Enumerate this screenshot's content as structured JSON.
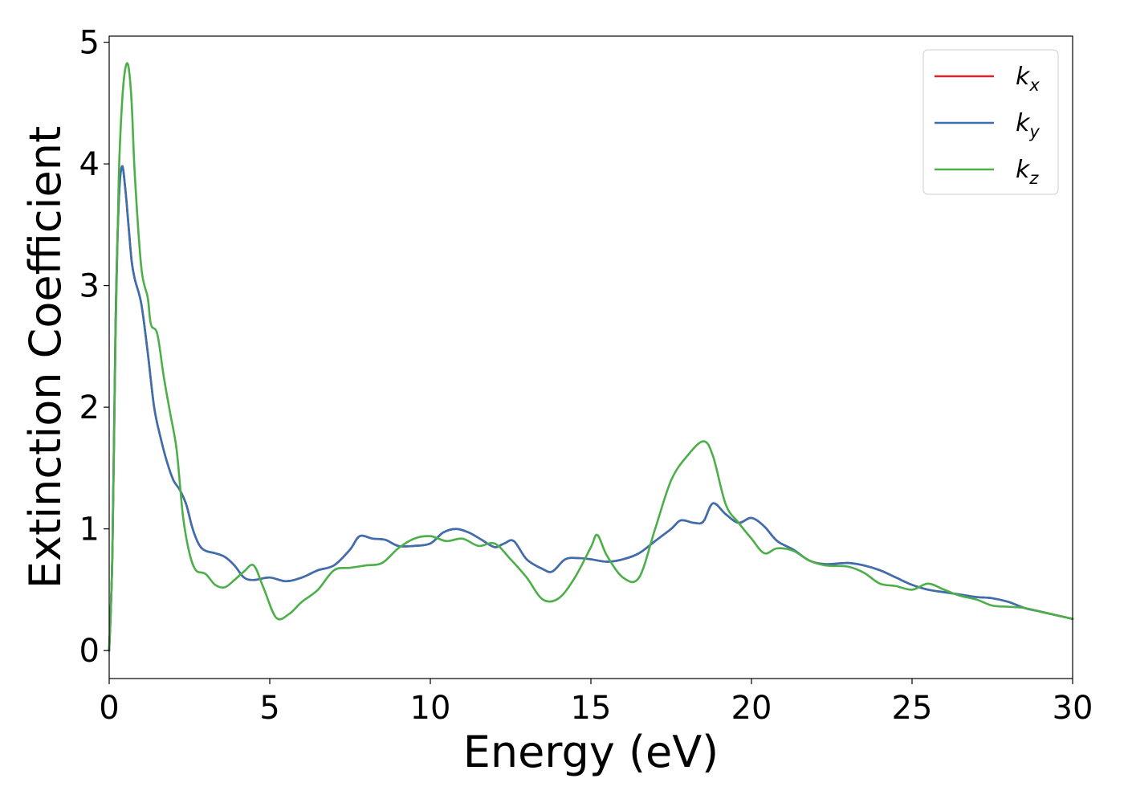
{
  "chart_data": {
    "type": "line",
    "xlabel": "Energy (eV)",
    "ylabel": "Extinction Coefficient",
    "xlim": [
      0,
      30
    ],
    "ylim": [
      -0.23,
      5.05
    ],
    "xticks": [
      "0",
      "5",
      "10",
      "15",
      "20",
      "25",
      "30"
    ],
    "yticks": [
      "0",
      "1",
      "2",
      "3",
      "4",
      "5"
    ],
    "grid": false,
    "legend_position": "top-right",
    "series": [
      {
        "name": "k_x",
        "label_base": "k",
        "label_sub": "x",
        "color": "#d62728",
        "x": [
          0,
          0.1,
          0.2,
          0.3,
          0.4,
          0.5,
          0.6,
          0.7,
          0.8,
          1.0,
          1.2,
          1.4,
          1.6,
          1.8,
          2.0,
          2.2,
          2.4,
          2.6,
          2.8,
          3.0,
          3.3,
          3.6,
          3.9,
          4.2,
          4.5,
          5.0,
          5.5,
          6.0,
          6.5,
          7.0,
          7.5,
          7.8,
          8.2,
          8.6,
          9.0,
          9.5,
          10.0,
          10.4,
          10.8,
          11.2,
          11.6,
          12.0,
          12.3,
          12.6,
          13.0,
          13.5,
          13.8,
          14.2,
          14.6,
          15.0,
          15.5,
          16.0,
          16.5,
          17.0,
          17.5,
          17.8,
          18.2,
          18.5,
          18.8,
          19.2,
          19.6,
          20.0,
          20.4,
          20.8,
          21.3,
          21.8,
          22.3,
          23.0,
          23.5,
          24.0,
          24.5,
          25.0,
          25.5,
          26.0,
          26.5,
          27.0,
          27.5,
          28.0,
          28.5,
          29.0,
          29.5,
          30.0
        ],
        "values": [
          0.0,
          0.8,
          2.7,
          3.7,
          3.98,
          3.8,
          3.5,
          3.2,
          3.05,
          2.85,
          2.45,
          2.0,
          1.75,
          1.55,
          1.4,
          1.32,
          1.2,
          1.0,
          0.87,
          0.82,
          0.8,
          0.77,
          0.7,
          0.6,
          0.58,
          0.6,
          0.57,
          0.6,
          0.66,
          0.7,
          0.83,
          0.94,
          0.92,
          0.91,
          0.86,
          0.86,
          0.88,
          0.97,
          1.0,
          0.97,
          0.91,
          0.85,
          0.88,
          0.9,
          0.75,
          0.67,
          0.65,
          0.75,
          0.76,
          0.75,
          0.73,
          0.75,
          0.8,
          0.9,
          1.0,
          1.07,
          1.05,
          1.06,
          1.21,
          1.12,
          1.05,
          1.09,
          1.02,
          0.9,
          0.83,
          0.74,
          0.71,
          0.72,
          0.7,
          0.66,
          0.6,
          0.54,
          0.5,
          0.48,
          0.46,
          0.44,
          0.43,
          0.4,
          0.35,
          0.32,
          0.29,
          0.26
        ]
      },
      {
        "name": "k_y",
        "label_base": "k",
        "label_sub": "y",
        "color": "#3a6fb0",
        "x": [
          0,
          0.1,
          0.2,
          0.3,
          0.4,
          0.5,
          0.6,
          0.7,
          0.8,
          1.0,
          1.2,
          1.4,
          1.6,
          1.8,
          2.0,
          2.2,
          2.4,
          2.6,
          2.8,
          3.0,
          3.3,
          3.6,
          3.9,
          4.2,
          4.5,
          5.0,
          5.5,
          6.0,
          6.5,
          7.0,
          7.5,
          7.8,
          8.2,
          8.6,
          9.0,
          9.5,
          10.0,
          10.4,
          10.8,
          11.2,
          11.6,
          12.0,
          12.3,
          12.6,
          13.0,
          13.5,
          13.8,
          14.2,
          14.6,
          15.0,
          15.5,
          16.0,
          16.5,
          17.0,
          17.5,
          17.8,
          18.2,
          18.5,
          18.8,
          19.2,
          19.6,
          20.0,
          20.4,
          20.8,
          21.3,
          21.8,
          22.3,
          23.0,
          23.5,
          24.0,
          24.5,
          25.0,
          25.5,
          26.0,
          26.5,
          27.0,
          27.5,
          28.0,
          28.5,
          29.0,
          29.5,
          30.0
        ],
        "values": [
          0.0,
          0.8,
          2.7,
          3.7,
          3.98,
          3.8,
          3.5,
          3.2,
          3.05,
          2.85,
          2.45,
          2.0,
          1.75,
          1.55,
          1.4,
          1.32,
          1.2,
          1.0,
          0.87,
          0.82,
          0.8,
          0.77,
          0.7,
          0.6,
          0.58,
          0.6,
          0.57,
          0.6,
          0.66,
          0.7,
          0.83,
          0.94,
          0.92,
          0.91,
          0.86,
          0.86,
          0.88,
          0.97,
          1.0,
          0.97,
          0.91,
          0.85,
          0.88,
          0.9,
          0.75,
          0.67,
          0.65,
          0.75,
          0.76,
          0.75,
          0.73,
          0.75,
          0.8,
          0.9,
          1.0,
          1.07,
          1.05,
          1.06,
          1.21,
          1.12,
          1.05,
          1.09,
          1.02,
          0.9,
          0.83,
          0.74,
          0.71,
          0.72,
          0.7,
          0.66,
          0.6,
          0.54,
          0.5,
          0.48,
          0.46,
          0.44,
          0.43,
          0.4,
          0.35,
          0.32,
          0.29,
          0.26
        ]
      },
      {
        "name": "k_z",
        "label_base": "k",
        "label_sub": "z",
        "color": "#4daf4a",
        "x": [
          0,
          0.1,
          0.2,
          0.3,
          0.4,
          0.5,
          0.6,
          0.7,
          0.8,
          1.0,
          1.2,
          1.3,
          1.5,
          1.7,
          1.9,
          2.1,
          2.3,
          2.5,
          2.7,
          3.0,
          3.3,
          3.6,
          3.9,
          4.2,
          4.5,
          4.8,
          5.2,
          5.6,
          6.0,
          6.5,
          7.0,
          7.5,
          8.0,
          8.5,
          9.0,
          9.5,
          10.0,
          10.5,
          11.0,
          11.5,
          12.0,
          12.5,
          13.0,
          13.5,
          14.0,
          14.5,
          15.0,
          15.2,
          15.5,
          16.0,
          16.5,
          17.0,
          17.5,
          18.0,
          18.5,
          18.8,
          19.2,
          19.6,
          20.0,
          20.4,
          20.8,
          21.3,
          21.8,
          22.3,
          23.0,
          23.5,
          24.0,
          24.5,
          25.0,
          25.5,
          26.0,
          26.5,
          27.0,
          27.5,
          28.0,
          28.5,
          29.0,
          29.5,
          30.0
        ],
        "values": [
          0.0,
          0.8,
          2.6,
          3.9,
          4.5,
          4.78,
          4.8,
          4.5,
          3.9,
          3.15,
          2.9,
          2.68,
          2.6,
          2.25,
          1.95,
          1.65,
          1.1,
          0.8,
          0.66,
          0.63,
          0.54,
          0.52,
          0.58,
          0.65,
          0.7,
          0.52,
          0.27,
          0.3,
          0.4,
          0.5,
          0.66,
          0.68,
          0.7,
          0.72,
          0.84,
          0.92,
          0.94,
          0.9,
          0.92,
          0.86,
          0.88,
          0.75,
          0.6,
          0.42,
          0.43,
          0.6,
          0.85,
          0.95,
          0.78,
          0.6,
          0.6,
          1.0,
          1.4,
          1.6,
          1.72,
          1.6,
          1.2,
          1.05,
          0.92,
          0.8,
          0.84,
          0.82,
          0.74,
          0.7,
          0.69,
          0.64,
          0.55,
          0.53,
          0.5,
          0.55,
          0.5,
          0.45,
          0.42,
          0.37,
          0.36,
          0.35,
          0.32,
          0.29,
          0.26
        ]
      }
    ]
  }
}
